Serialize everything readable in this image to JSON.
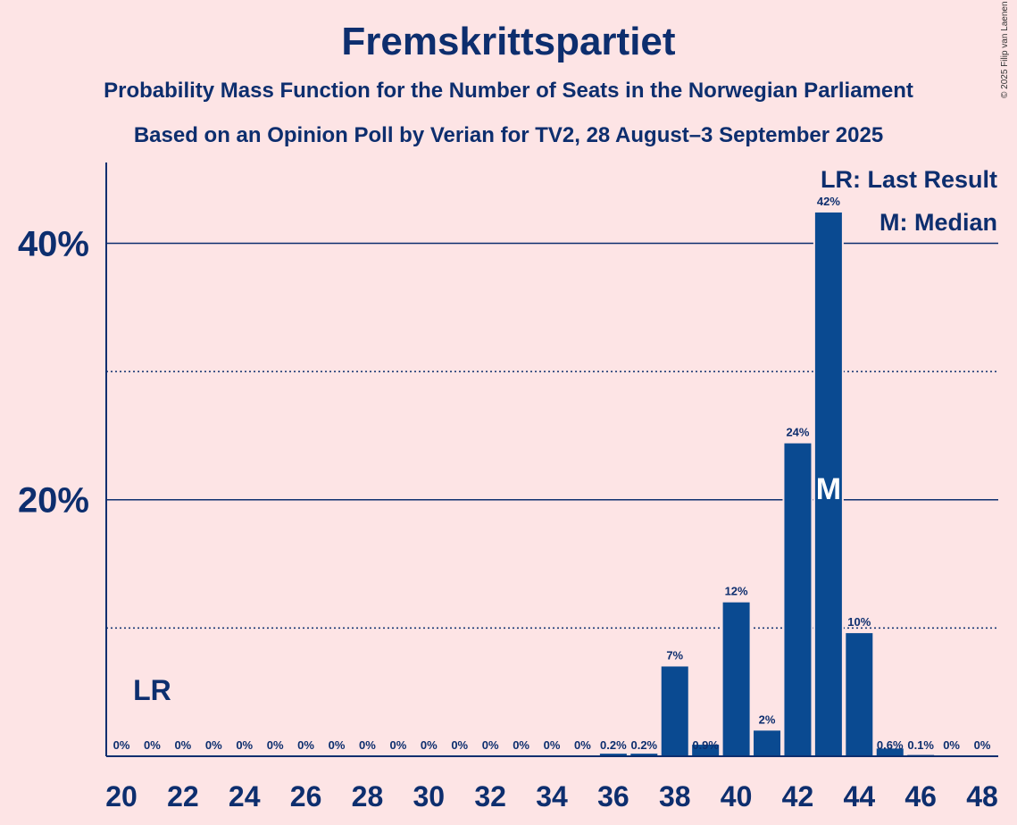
{
  "title": "Fremskrittspartiet",
  "subtitle1": "Probability Mass Function for the Number of Seats in the Norwegian Parliament",
  "subtitle2": "Based on an Opinion Poll by Verian for TV2, 28 August–3 September 2025",
  "copyright": "© 2025 Filip van Laenen",
  "legend": {
    "last_result": "LR: Last Result",
    "median": "M: Median"
  },
  "markers": {
    "last_result_label": "LR",
    "last_result_seat": 21,
    "median_label": "M",
    "median_seat": 43
  },
  "colors": {
    "background": "#fde4e5",
    "bar": "#0a4a91",
    "text": "#0d2e6e"
  },
  "chart_data": {
    "type": "bar",
    "categories": [
      20,
      21,
      22,
      23,
      24,
      25,
      26,
      27,
      28,
      29,
      30,
      31,
      32,
      33,
      34,
      35,
      36,
      37,
      38,
      39,
      40,
      41,
      42,
      43,
      44,
      45,
      46,
      47,
      48
    ],
    "values": [
      0,
      0,
      0,
      0,
      0,
      0,
      0,
      0,
      0,
      0,
      0,
      0,
      0,
      0,
      0,
      0,
      0.2,
      0.2,
      7,
      0.9,
      12,
      2,
      24.4,
      42.4,
      9.6,
      0.6,
      0.1,
      0,
      0
    ],
    "value_labels": [
      "0%",
      "0%",
      "0%",
      "0%",
      "0%",
      "0%",
      "0%",
      "0%",
      "0%",
      "0%",
      "0%",
      "0%",
      "0%",
      "0%",
      "0%",
      "0%",
      "0.2%",
      "0.2%",
      "7%",
      "0.9%",
      "12%",
      "2%",
      "24%",
      "42%",
      "10%",
      "0.6%",
      "0.1%",
      "0%",
      "0%"
    ],
    "x_tick_labels": [
      "20",
      "22",
      "24",
      "26",
      "28",
      "30",
      "32",
      "34",
      "36",
      "38",
      "40",
      "42",
      "44",
      "46",
      "48"
    ],
    "y_tick_labels": [
      "20%",
      "40%"
    ],
    "y_ticks_major": [
      20,
      40
    ],
    "y_ticks_minor": [
      10,
      30
    ],
    "ylim": [
      0,
      46.3
    ],
    "grid": true
  }
}
